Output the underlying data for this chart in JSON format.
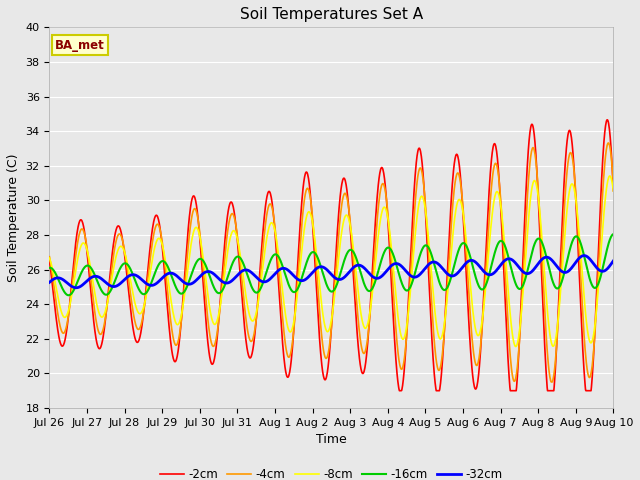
{
  "title": "Soil Temperatures Set A",
  "xlabel": "Time",
  "ylabel": "Soil Temperature (C)",
  "ylim": [
    18,
    40
  ],
  "annotation": "BA_met",
  "x_tick_labels": [
    "Jul 26",
    "Jul 27",
    "Jul 28",
    "Jul 29",
    "Jul 30",
    "Jul 31",
    "Aug 1",
    "Aug 2",
    "Aug 3",
    "Aug 4",
    "Aug 5",
    "Aug 6",
    "Aug 7",
    "Aug 8",
    "Aug 9",
    "Aug 10"
  ],
  "legend_labels": [
    "-2cm",
    "-4cm",
    "-8cm",
    "-16cm",
    "-32cm"
  ],
  "line_colors": [
    "#ff0000",
    "#ff9900",
    "#ffff00",
    "#00cc00",
    "#0000ff"
  ],
  "line_widths": [
    1.2,
    1.2,
    1.2,
    1.5,
    2.0
  ],
  "background_color": "#e8e8e8",
  "plot_bg_color": "#e8e8e8",
  "title_fontsize": 11,
  "label_fontsize": 9,
  "tick_fontsize": 8
}
